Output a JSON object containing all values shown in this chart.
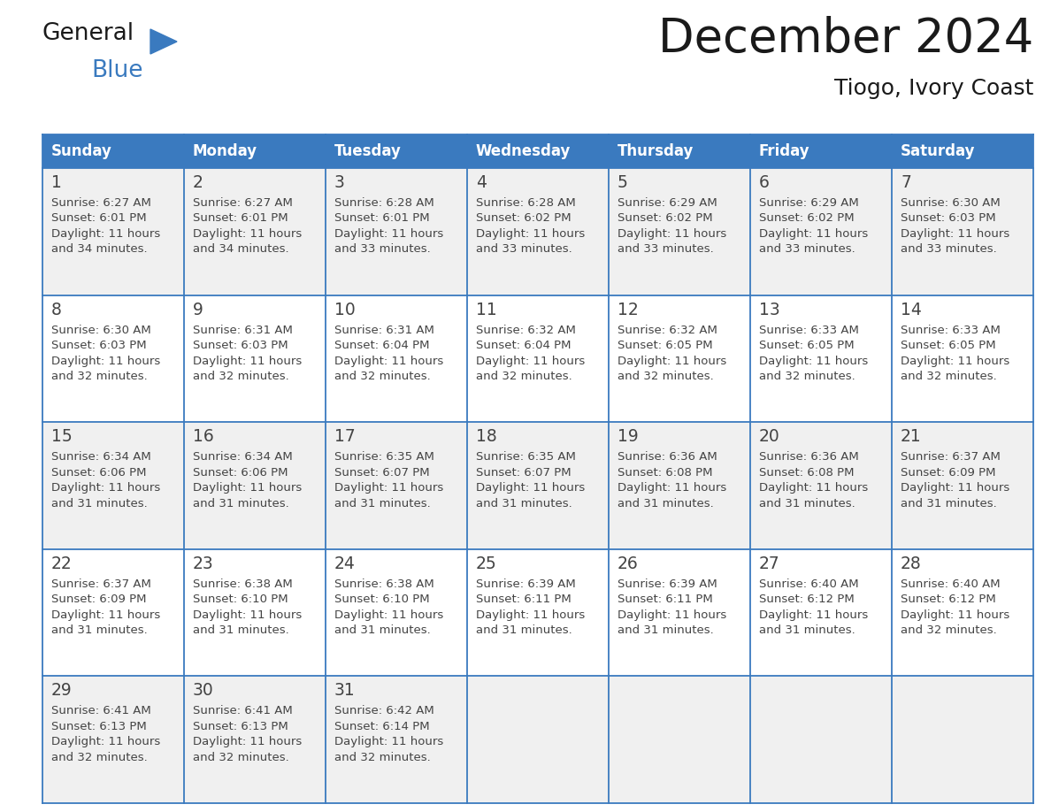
{
  "title": "December 2024",
  "subtitle": "Tiogo, Ivory Coast",
  "days_of_week": [
    "Sunday",
    "Monday",
    "Tuesday",
    "Wednesday",
    "Thursday",
    "Friday",
    "Saturday"
  ],
  "header_bg": "#3a7abf",
  "header_text": "#ffffff",
  "row_bg_odd": "#f0f0f0",
  "row_bg_even": "#ffffff",
  "grid_line_color": "#3a7abf",
  "text_color": "#444444",
  "title_color": "#1a1a1a",
  "calendar_data": [
    [
      {
        "day": "1",
        "sunrise": "6:27 AM",
        "sunset": "6:01 PM",
        "dl1": "Daylight: 11 hours",
        "dl2": "and 34 minutes."
      },
      {
        "day": "2",
        "sunrise": "6:27 AM",
        "sunset": "6:01 PM",
        "dl1": "Daylight: 11 hours",
        "dl2": "and 34 minutes."
      },
      {
        "day": "3",
        "sunrise": "6:28 AM",
        "sunset": "6:01 PM",
        "dl1": "Daylight: 11 hours",
        "dl2": "and 33 minutes."
      },
      {
        "day": "4",
        "sunrise": "6:28 AM",
        "sunset": "6:02 PM",
        "dl1": "Daylight: 11 hours",
        "dl2": "and 33 minutes."
      },
      {
        "day": "5",
        "sunrise": "6:29 AM",
        "sunset": "6:02 PM",
        "dl1": "Daylight: 11 hours",
        "dl2": "and 33 minutes."
      },
      {
        "day": "6",
        "sunrise": "6:29 AM",
        "sunset": "6:02 PM",
        "dl1": "Daylight: 11 hours",
        "dl2": "and 33 minutes."
      },
      {
        "day": "7",
        "sunrise": "6:30 AM",
        "sunset": "6:03 PM",
        "dl1": "Daylight: 11 hours",
        "dl2": "and 33 minutes."
      }
    ],
    [
      {
        "day": "8",
        "sunrise": "6:30 AM",
        "sunset": "6:03 PM",
        "dl1": "Daylight: 11 hours",
        "dl2": "and 32 minutes."
      },
      {
        "day": "9",
        "sunrise": "6:31 AM",
        "sunset": "6:03 PM",
        "dl1": "Daylight: 11 hours",
        "dl2": "and 32 minutes."
      },
      {
        "day": "10",
        "sunrise": "6:31 AM",
        "sunset": "6:04 PM",
        "dl1": "Daylight: 11 hours",
        "dl2": "and 32 minutes."
      },
      {
        "day": "11",
        "sunrise": "6:32 AM",
        "sunset": "6:04 PM",
        "dl1": "Daylight: 11 hours",
        "dl2": "and 32 minutes."
      },
      {
        "day": "12",
        "sunrise": "6:32 AM",
        "sunset": "6:05 PM",
        "dl1": "Daylight: 11 hours",
        "dl2": "and 32 minutes."
      },
      {
        "day": "13",
        "sunrise": "6:33 AM",
        "sunset": "6:05 PM",
        "dl1": "Daylight: 11 hours",
        "dl2": "and 32 minutes."
      },
      {
        "day": "14",
        "sunrise": "6:33 AM",
        "sunset": "6:05 PM",
        "dl1": "Daylight: 11 hours",
        "dl2": "and 32 minutes."
      }
    ],
    [
      {
        "day": "15",
        "sunrise": "6:34 AM",
        "sunset": "6:06 PM",
        "dl1": "Daylight: 11 hours",
        "dl2": "and 31 minutes."
      },
      {
        "day": "16",
        "sunrise": "6:34 AM",
        "sunset": "6:06 PM",
        "dl1": "Daylight: 11 hours",
        "dl2": "and 31 minutes."
      },
      {
        "day": "17",
        "sunrise": "6:35 AM",
        "sunset": "6:07 PM",
        "dl1": "Daylight: 11 hours",
        "dl2": "and 31 minutes."
      },
      {
        "day": "18",
        "sunrise": "6:35 AM",
        "sunset": "6:07 PM",
        "dl1": "Daylight: 11 hours",
        "dl2": "and 31 minutes."
      },
      {
        "day": "19",
        "sunrise": "6:36 AM",
        "sunset": "6:08 PM",
        "dl1": "Daylight: 11 hours",
        "dl2": "and 31 minutes."
      },
      {
        "day": "20",
        "sunrise": "6:36 AM",
        "sunset": "6:08 PM",
        "dl1": "Daylight: 11 hours",
        "dl2": "and 31 minutes."
      },
      {
        "day": "21",
        "sunrise": "6:37 AM",
        "sunset": "6:09 PM",
        "dl1": "Daylight: 11 hours",
        "dl2": "and 31 minutes."
      }
    ],
    [
      {
        "day": "22",
        "sunrise": "6:37 AM",
        "sunset": "6:09 PM",
        "dl1": "Daylight: 11 hours",
        "dl2": "and 31 minutes."
      },
      {
        "day": "23",
        "sunrise": "6:38 AM",
        "sunset": "6:10 PM",
        "dl1": "Daylight: 11 hours",
        "dl2": "and 31 minutes."
      },
      {
        "day": "24",
        "sunrise": "6:38 AM",
        "sunset": "6:10 PM",
        "dl1": "Daylight: 11 hours",
        "dl2": "and 31 minutes."
      },
      {
        "day": "25",
        "sunrise": "6:39 AM",
        "sunset": "6:11 PM",
        "dl1": "Daylight: 11 hours",
        "dl2": "and 31 minutes."
      },
      {
        "day": "26",
        "sunrise": "6:39 AM",
        "sunset": "6:11 PM",
        "dl1": "Daylight: 11 hours",
        "dl2": "and 31 minutes."
      },
      {
        "day": "27",
        "sunrise": "6:40 AM",
        "sunset": "6:12 PM",
        "dl1": "Daylight: 11 hours",
        "dl2": "and 31 minutes."
      },
      {
        "day": "28",
        "sunrise": "6:40 AM",
        "sunset": "6:12 PM",
        "dl1": "Daylight: 11 hours",
        "dl2": "and 32 minutes."
      }
    ],
    [
      {
        "day": "29",
        "sunrise": "6:41 AM",
        "sunset": "6:13 PM",
        "dl1": "Daylight: 11 hours",
        "dl2": "and 32 minutes."
      },
      {
        "day": "30",
        "sunrise": "6:41 AM",
        "sunset": "6:13 PM",
        "dl1": "Daylight: 11 hours",
        "dl2": "and 32 minutes."
      },
      {
        "day": "31",
        "sunrise": "6:42 AM",
        "sunset": "6:14 PM",
        "dl1": "Daylight: 11 hours",
        "dl2": "and 32 minutes."
      },
      null,
      null,
      null,
      null
    ]
  ],
  "logo_color_general": "#1a1a1a",
  "logo_color_blue": "#3a7abf",
  "logo_triangle_color": "#3a7abf"
}
